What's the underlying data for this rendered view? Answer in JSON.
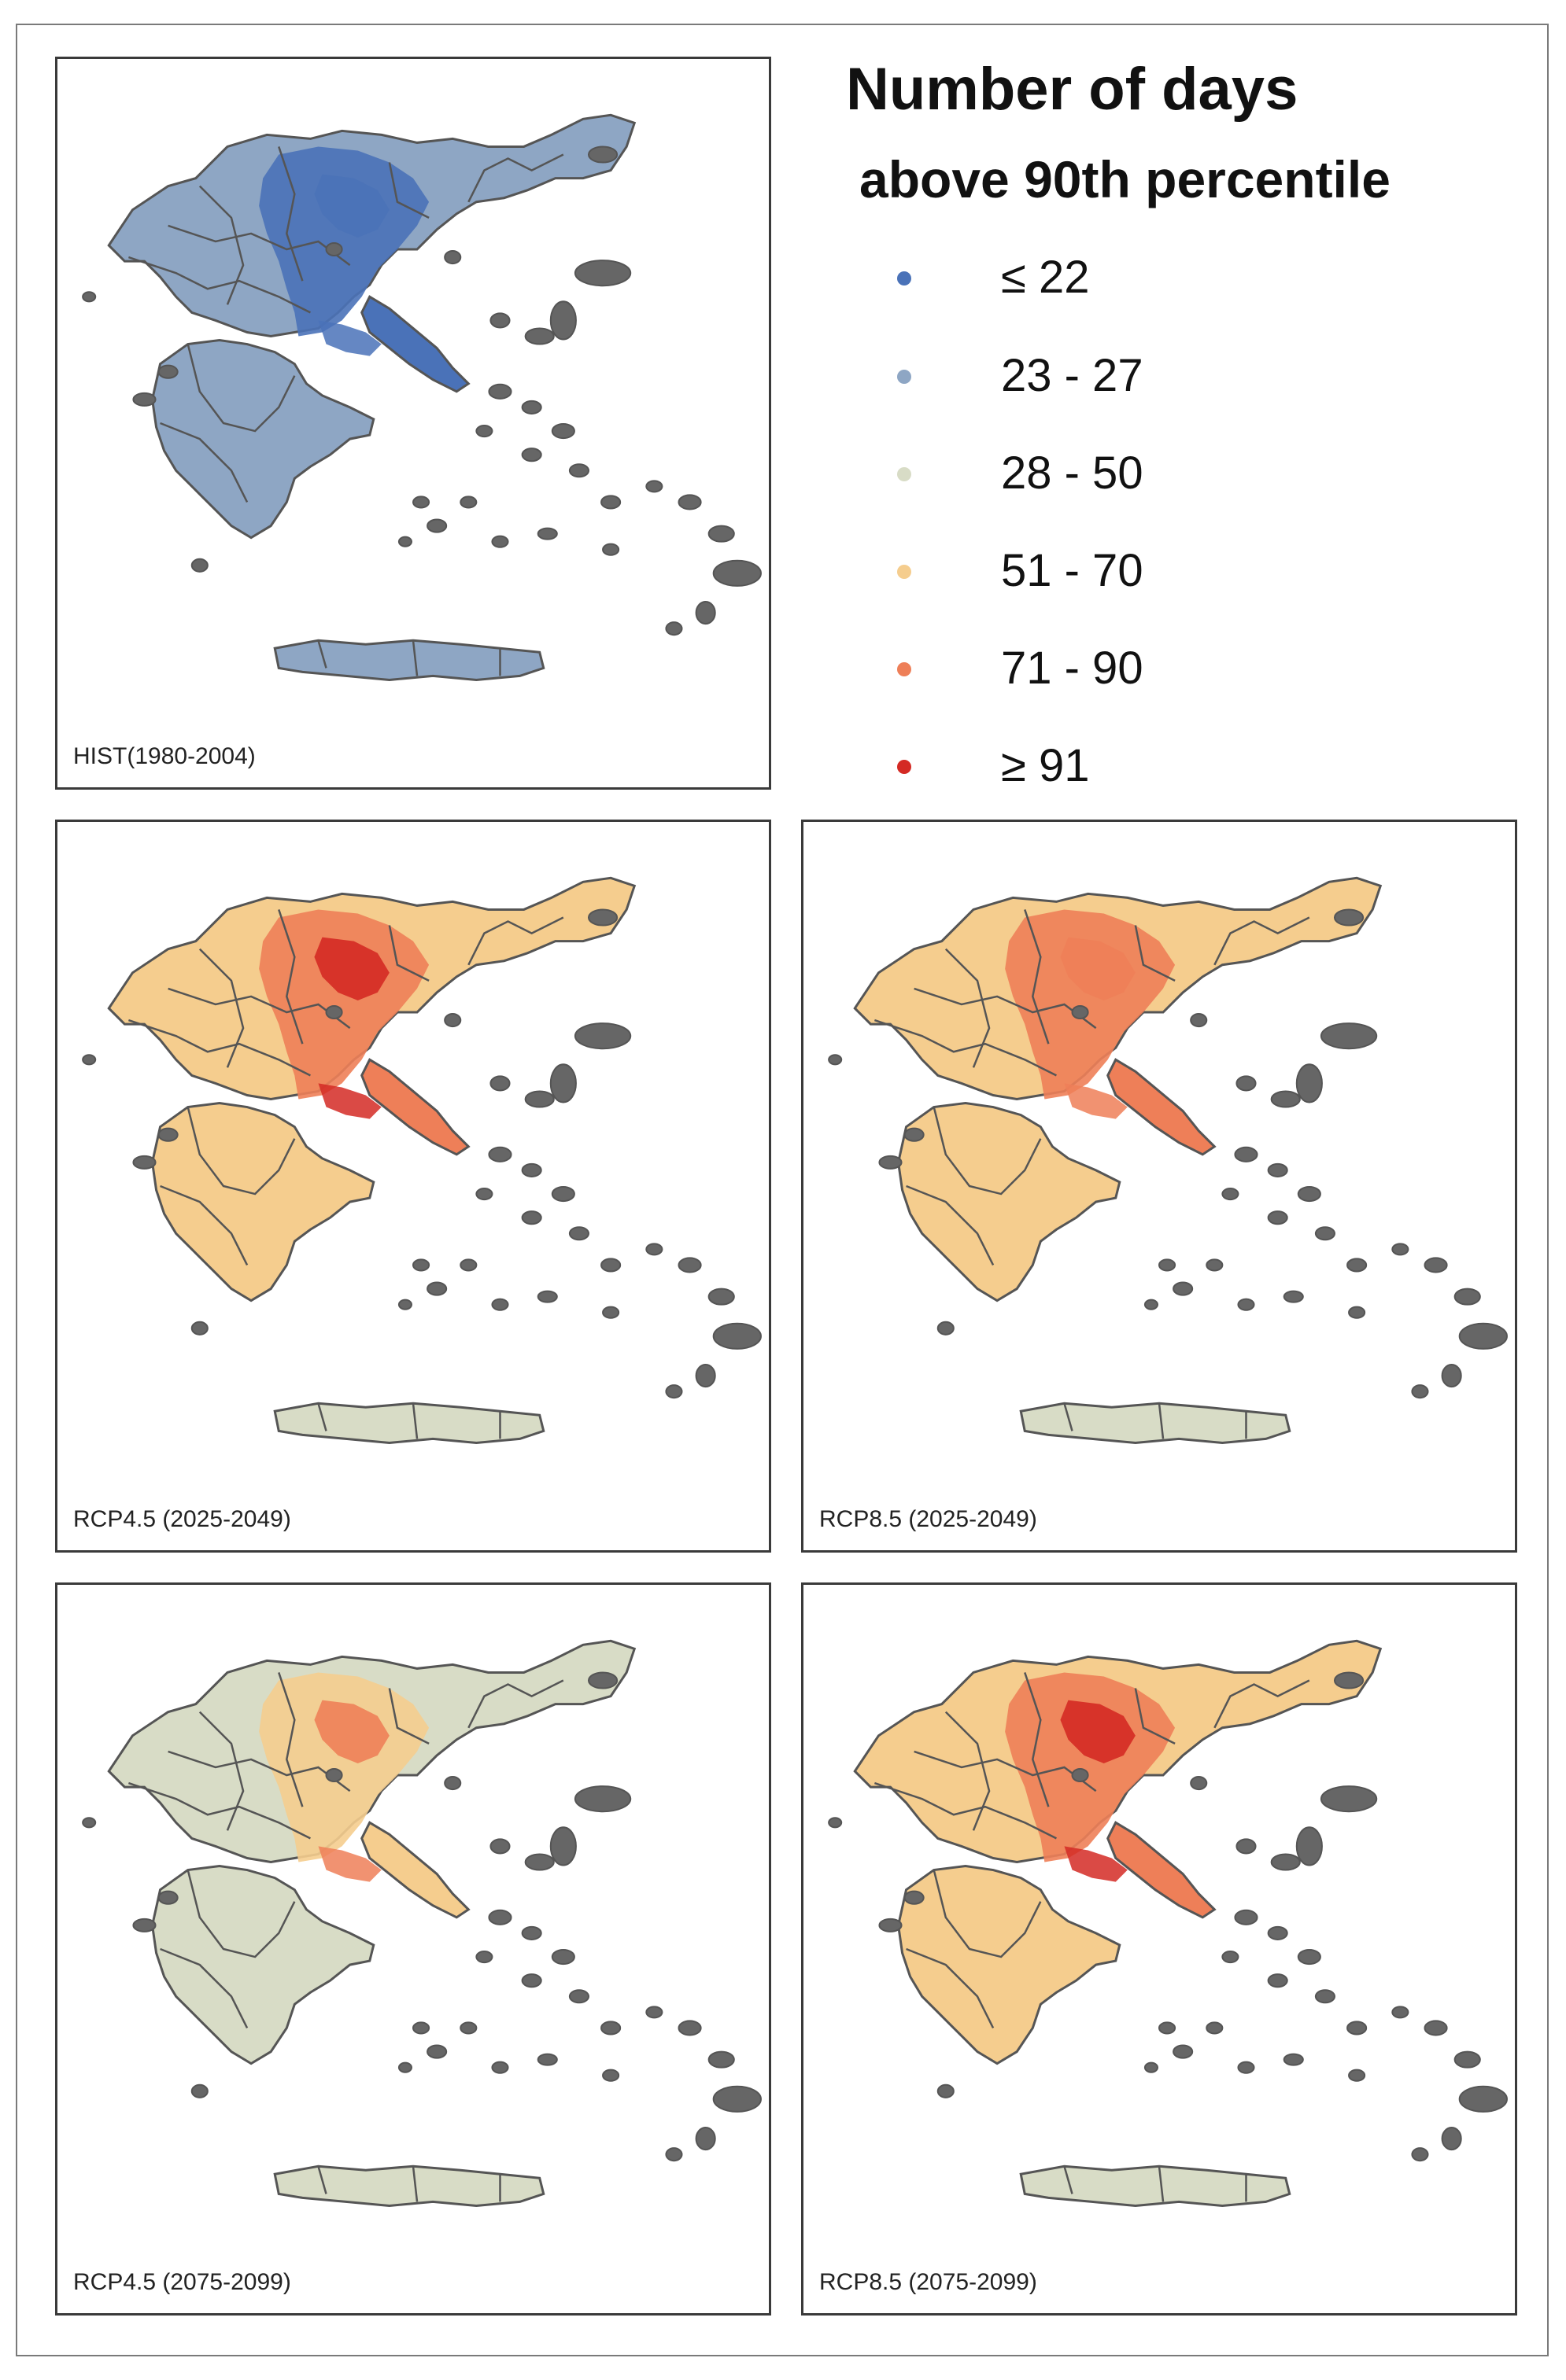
{
  "legend": {
    "title_line1": "Number of days",
    "title_line2": "above 90th percentile",
    "classes": [
      {
        "label": "≤ 22",
        "color": "#4a72b8"
      },
      {
        "label": "23 - 27",
        "color": "#8ea6c4"
      },
      {
        "label": "28 - 50",
        "color": "#d8dcc6"
      },
      {
        "label": "51 - 70",
        "color": "#f5cd8e"
      },
      {
        "label": "71 - 90",
        "color": "#ee7f58"
      },
      {
        "label": "≥ 91",
        "color": "#d42a24"
      }
    ]
  },
  "panels": [
    {
      "label": "HIST(1980-2004)",
      "north": "#8ea6c4",
      "hot": "#4a72b8",
      "south": "#8ea6c4",
      "hotspot": "#4a72b8",
      "crete": "#8ea6c4"
    },
    {
      "label": "RCP4.5 (2025-2049)",
      "north": "#f5cd8e",
      "hot": "#ee7f58",
      "south": "#f5cd8e",
      "hotspot": "#d42a24",
      "crete": "#d8dcc6"
    },
    {
      "label": "RCP8.5 (2025-2049)",
      "north": "#f5cd8e",
      "hot": "#ee7f58",
      "south": "#f5cd8e",
      "hotspot": "#ee7f58",
      "crete": "#d8dcc6"
    },
    {
      "label": "RCP4.5 (2075-2099)",
      "north": "#d8dcc6",
      "hot": "#f5cd8e",
      "south": "#d8dcc6",
      "hotspot": "#ee7f58",
      "crete": "#d8dcc6"
    },
    {
      "label": "RCP8.5 (2075-2099)",
      "north": "#f5cd8e",
      "hot": "#ee7f58",
      "south": "#f5cd8e",
      "hotspot": "#d42a24",
      "crete": "#d8dcc6"
    }
  ]
}
